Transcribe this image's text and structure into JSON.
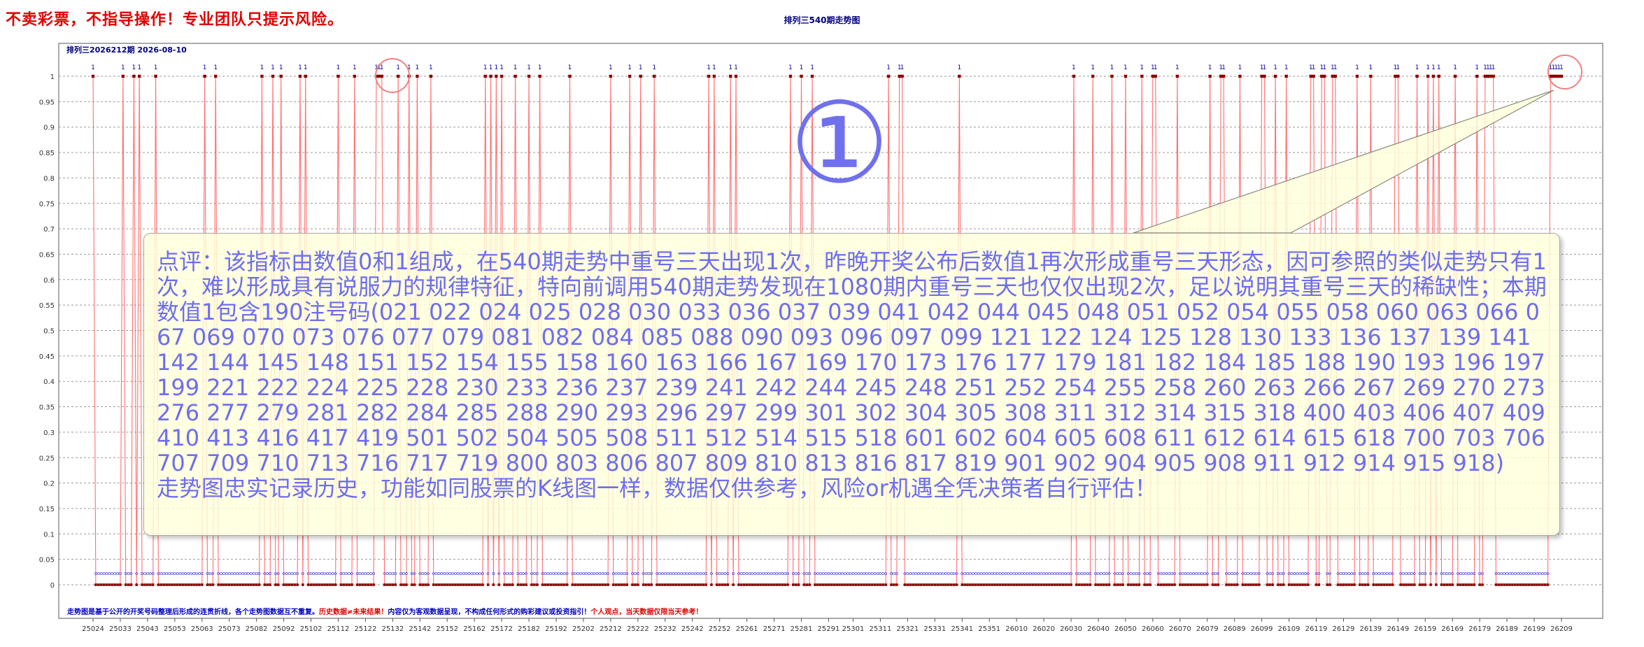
{
  "header": {
    "headline": "不卖彩票，不指导操作！专业团队只提示风险。",
    "chart_title": "排列三540期走势图",
    "issue_label": "排列三2026212期 2026-08-10"
  },
  "annotation": {
    "circled_number": "①",
    "comment": "点评：该指标由数值0和1组成，在540期走势中重号三天出现1次，昨晚开奖公布后数值1再次形成重号三天形态，因可参照的类似走势只有1次，难以形成具有说服力的规律特征，特向前调用540期走势发现在1080期内重号三天也仅仅出现2次，足以说明其重号三天的稀缺性；本期数值1包含190注号码(021 022 024 025 028 030 033 036 037 039 041 042 044 045 048 051 052 054 055 058 060 063 066 067 069 070 073 076 077 079 081 082 084 085 088 090 093 096 097 099 121 122 124 125 128 130 133 136 137 139 141 142 144 145 148 151 152 154 155 158 160 163 166 167 169 170 173 176 177 179 181 182 184 185 188 190 193 196 197 199 221 222 224 225 228 230 233 236 237 239 241 242 244 245 248 251 252 254 255 258 260 263 266 267 269 270 273 276 277 279 281 282 284 285 288 290 293 296 297 299 301 302 304 305 308 311 312 314 315 318 400 403 406 407 409 410 413 416 417 419 501 502 504 505 508 511 512 514 515 518 601 602 604 605 608 611 612 614 615 618 700 703 706 707 709 710 713 716 717 719 800 803 806 807 809 810 813 816 817 819 901 902 904 905 908 911 912 914 915 918)\n走势图忠实记录历史，功能如同股票的K线图一样，数据仅供参考，风险or机遇全凭决策者自行评估！"
  },
  "footer": {
    "part1": "走势图是基于公开的开奖号码整理后形成的连贯折线，各个走势图数据互不重复。",
    "part2": "历史数据≠未来结果！",
    "part3": "内容仅为客观数据呈现，不构成任何形式的购彩建议或投资指引！",
    "part4": "个人观点，当天数据仅限当天参考！"
  },
  "colors": {
    "line": "#ff7070",
    "marker_one": "#8b0000",
    "marker_zero": "#8b0000",
    "zero_band": "#6060d0",
    "circle": "#f08080",
    "comment_text": "#6d6df0"
  },
  "chart_data": {
    "type": "line",
    "title": "排列三540期走势图",
    "x_count": 540,
    "x_tick_labels": [
      "25024",
      "25033",
      "25043",
      "25053",
      "25063",
      "25073",
      "25082",
      "25092",
      "25102",
      "25112",
      "25122",
      "25132",
      "25142",
      "25152",
      "25162",
      "25172",
      "25182",
      "25192",
      "25202",
      "25212",
      "25222",
      "25232",
      "25242",
      "25252",
      "25261",
      "25271",
      "25281",
      "25291",
      "25301",
      "25311",
      "25321",
      "25331",
      "25341",
      "25351",
      "26010",
      "26020",
      "26030",
      "26040",
      "26050",
      "26060",
      "26070",
      "26079",
      "26089",
      "26099",
      "26109",
      "26119",
      "26129",
      "26139",
      "26149",
      "26159",
      "26169",
      "26179",
      "26189",
      "26199",
      "26209"
    ],
    "y_ticks": [
      0,
      0.05,
      0.1,
      0.15,
      0.2,
      0.25,
      0.3,
      0.35,
      0.4,
      0.45,
      0.5,
      0.55,
      0.6,
      0.65,
      0.7,
      0.75,
      0.8,
      0.85,
      0.9,
      0.95,
      1
    ],
    "ylim": [
      0,
      1
    ],
    "grid": true,
    "value_one_label": "1",
    "ones_at_index": [
      0,
      11,
      15,
      17,
      23,
      41,
      45,
      62,
      66,
      69,
      76,
      78,
      90,
      96,
      104,
      105,
      106,
      112,
      116,
      119,
      124,
      144,
      146,
      148,
      150,
      155,
      160,
      164,
      175,
      190,
      197,
      201,
      206,
      226,
      228,
      234,
      236,
      256,
      260,
      264,
      292,
      296,
      297,
      318,
      360,
      367,
      374,
      379,
      385,
      389,
      390,
      398,
      410,
      414,
      415,
      421,
      429,
      430,
      434,
      438,
      447,
      448,
      451,
      452,
      455,
      456,
      464,
      469,
      478,
      479,
      486,
      490,
      492,
      494,
      500,
      508,
      511,
      512,
      513,
      514,
      535,
      536,
      537,
      538,
      539
    ]
  }
}
